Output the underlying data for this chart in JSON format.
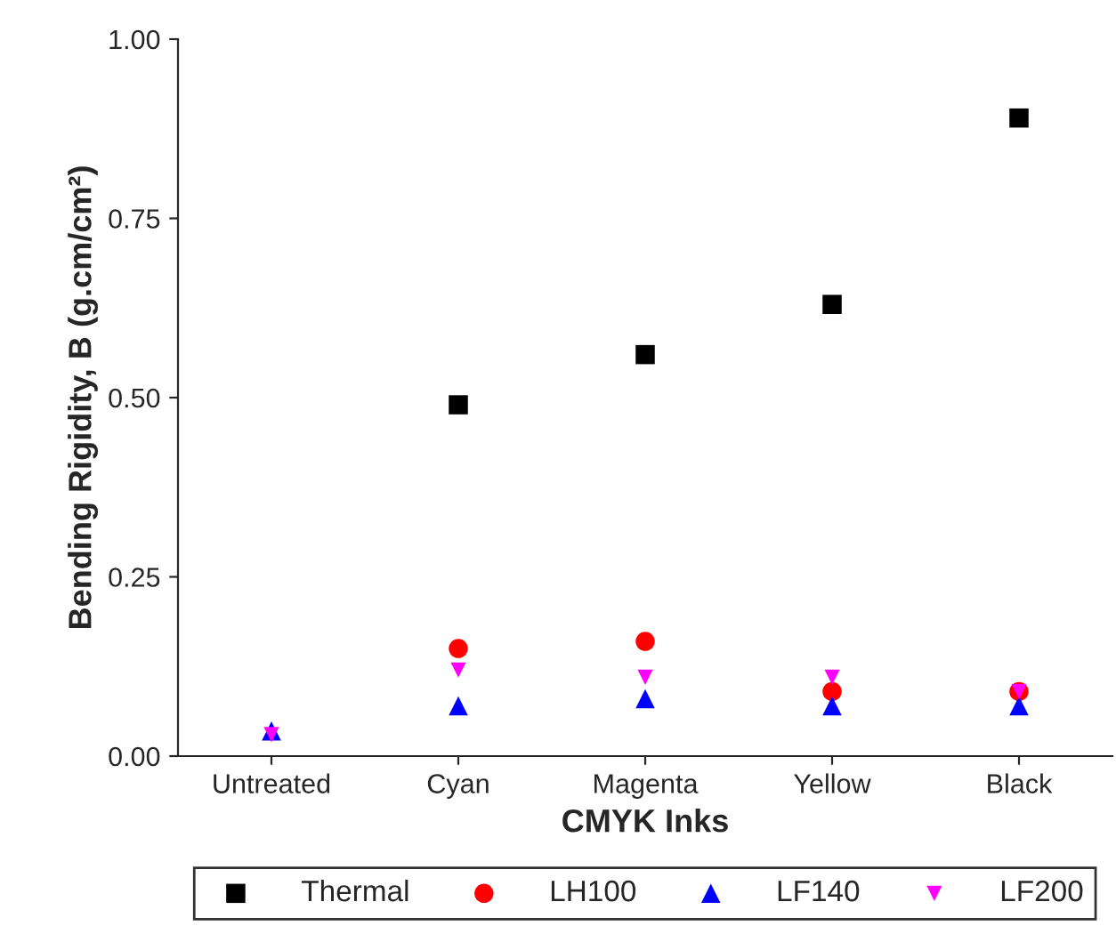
{
  "chart_data": {
    "type": "scatter",
    "xlabel": "CMYK Inks",
    "ylabel": "Bending Rigidity, B (g.cm/cm²)",
    "categories": [
      "Untreated",
      "Cyan",
      "Magenta",
      "Yellow",
      "Black"
    ],
    "series": [
      {
        "name": "Thermal",
        "color": "#000000",
        "marker": "square",
        "values": [
          null,
          0.49,
          0.56,
          0.63,
          0.89
        ]
      },
      {
        "name": "LH100",
        "color": "#ff0000",
        "marker": "circle",
        "values": [
          null,
          0.15,
          0.16,
          0.09,
          0.09
        ]
      },
      {
        "name": "LF140",
        "color": "#0000ff",
        "marker": "triangle",
        "values": [
          0.035,
          0.07,
          0.08,
          0.07,
          0.07
        ]
      },
      {
        "name": "LF200",
        "color": "#ff00ff",
        "marker": "triangle_down",
        "values": [
          0.03,
          0.12,
          0.11,
          0.11,
          0.09
        ]
      }
    ],
    "ylim": [
      0,
      1.0
    ],
    "yticks": [
      {
        "value": 0,
        "label": "0.00"
      },
      {
        "value": 0.25,
        "label": "0.25"
      },
      {
        "value": 0.5,
        "label": "0.50"
      },
      {
        "value": 0.75,
        "label": "0.75"
      },
      {
        "value": 1.0,
        "label": "1.00"
      }
    ],
    "grid": false,
    "legend": "bottom"
  }
}
